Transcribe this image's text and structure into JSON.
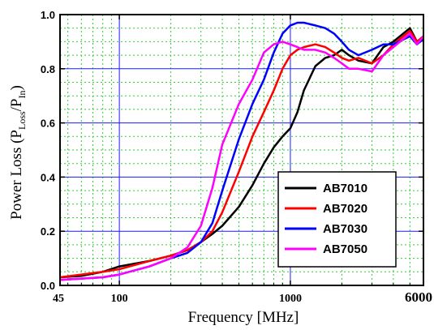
{
  "chart_data": {
    "type": "line",
    "xscale": "log",
    "xlim": [
      45,
      6000
    ],
    "ylim": [
      0,
      1.0
    ],
    "xlabel": "Frequency [MHz]",
    "ylabel": {
      "main": "Power Loss (P",
      "sub1": "Loss",
      "mid": "/P",
      "sub2": "In",
      "end": ")"
    },
    "x_ticks": [
      45,
      100,
      1000,
      6000
    ],
    "x_tick_labels": [
      "45",
      "100",
      "1000",
      "6000"
    ],
    "y_ticks": [
      0,
      0.2,
      0.4,
      0.6,
      0.8,
      1.0
    ],
    "y_tick_labels": [
      "0.0",
      "0.2",
      "0.4",
      "0.6",
      "0.8",
      "1.0"
    ],
    "grid": "major solid blue, minor dashed green",
    "legend_position": "bottom-right",
    "series": [
      {
        "name": "AB7010",
        "color": "#000000",
        "x": [
          45,
          60,
          80,
          100,
          150,
          200,
          250,
          300,
          350,
          400,
          500,
          600,
          700,
          800,
          900,
          1000,
          1100,
          1200,
          1400,
          1600,
          1800,
          2000,
          2200,
          2500,
          3000,
          3500,
          4000,
          5000,
          5500,
          6000
        ],
        "y": [
          0.03,
          0.035,
          0.05,
          0.07,
          0.09,
          0.11,
          0.13,
          0.16,
          0.19,
          0.22,
          0.29,
          0.37,
          0.45,
          0.51,
          0.55,
          0.58,
          0.64,
          0.72,
          0.81,
          0.84,
          0.85,
          0.87,
          0.85,
          0.83,
          0.82,
          0.88,
          0.9,
          0.95,
          0.9,
          0.92
        ]
      },
      {
        "name": "AB7020",
        "color": "#ff0000",
        "x": [
          45,
          60,
          80,
          100,
          150,
          200,
          250,
          300,
          350,
          400,
          500,
          600,
          700,
          800,
          900,
          1000,
          1100,
          1200,
          1400,
          1600,
          1800,
          2000,
          2200,
          2500,
          3000,
          3500,
          4000,
          5000,
          5500,
          6000
        ],
        "y": [
          0.03,
          0.04,
          0.05,
          0.06,
          0.09,
          0.11,
          0.13,
          0.16,
          0.2,
          0.27,
          0.42,
          0.55,
          0.64,
          0.72,
          0.8,
          0.85,
          0.87,
          0.88,
          0.89,
          0.88,
          0.86,
          0.84,
          0.83,
          0.84,
          0.82,
          0.85,
          0.89,
          0.94,
          0.9,
          0.92
        ]
      },
      {
        "name": "AB7030",
        "color": "#0000ff",
        "x": [
          45,
          60,
          80,
          100,
          150,
          200,
          250,
          300,
          350,
          400,
          500,
          600,
          700,
          800,
          900,
          1000,
          1100,
          1200,
          1400,
          1600,
          1800,
          2000,
          2200,
          2500,
          3000,
          3500,
          4000,
          5000,
          5500,
          6000
        ],
        "y": [
          0.02,
          0.025,
          0.03,
          0.04,
          0.07,
          0.1,
          0.12,
          0.16,
          0.23,
          0.35,
          0.54,
          0.67,
          0.76,
          0.86,
          0.93,
          0.96,
          0.97,
          0.97,
          0.96,
          0.95,
          0.93,
          0.9,
          0.87,
          0.85,
          0.87,
          0.89,
          0.89,
          0.92,
          0.89,
          0.91
        ]
      },
      {
        "name": "AB7050",
        "color": "#ff00ff",
        "x": [
          45,
          60,
          80,
          100,
          150,
          200,
          250,
          300,
          350,
          400,
          500,
          600,
          700,
          800,
          900,
          1000,
          1100,
          1200,
          1400,
          1600,
          1800,
          2000,
          2200,
          2500,
          3000,
          3500,
          4000,
          5000,
          5500,
          6000
        ],
        "y": [
          0.02,
          0.025,
          0.03,
          0.04,
          0.07,
          0.1,
          0.14,
          0.22,
          0.36,
          0.52,
          0.67,
          0.76,
          0.86,
          0.89,
          0.9,
          0.89,
          0.88,
          0.87,
          0.87,
          0.86,
          0.84,
          0.82,
          0.8,
          0.8,
          0.79,
          0.85,
          0.88,
          0.93,
          0.89,
          0.92
        ]
      }
    ]
  }
}
